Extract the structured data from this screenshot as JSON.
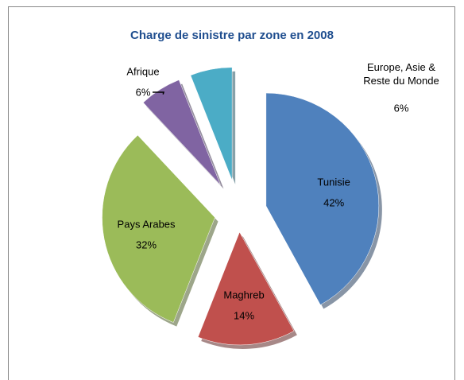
{
  "chart_data": {
    "type": "pie",
    "title": "Charge de sinistre par zone en 2008",
    "categories": [
      "Tunisie",
      "Maghreb",
      "Pays Arabes",
      "Afrique",
      "Europe, Asie & Reste du Monde"
    ],
    "values": [
      42,
      14,
      32,
      6,
      6
    ],
    "value_labels": [
      "42%",
      "14%",
      "32%",
      "6%",
      "6%"
    ],
    "colors": [
      "#4f81bd",
      "#c0504d",
      "#9bbb59",
      "#8064a2",
      "#4bacc6"
    ]
  }
}
